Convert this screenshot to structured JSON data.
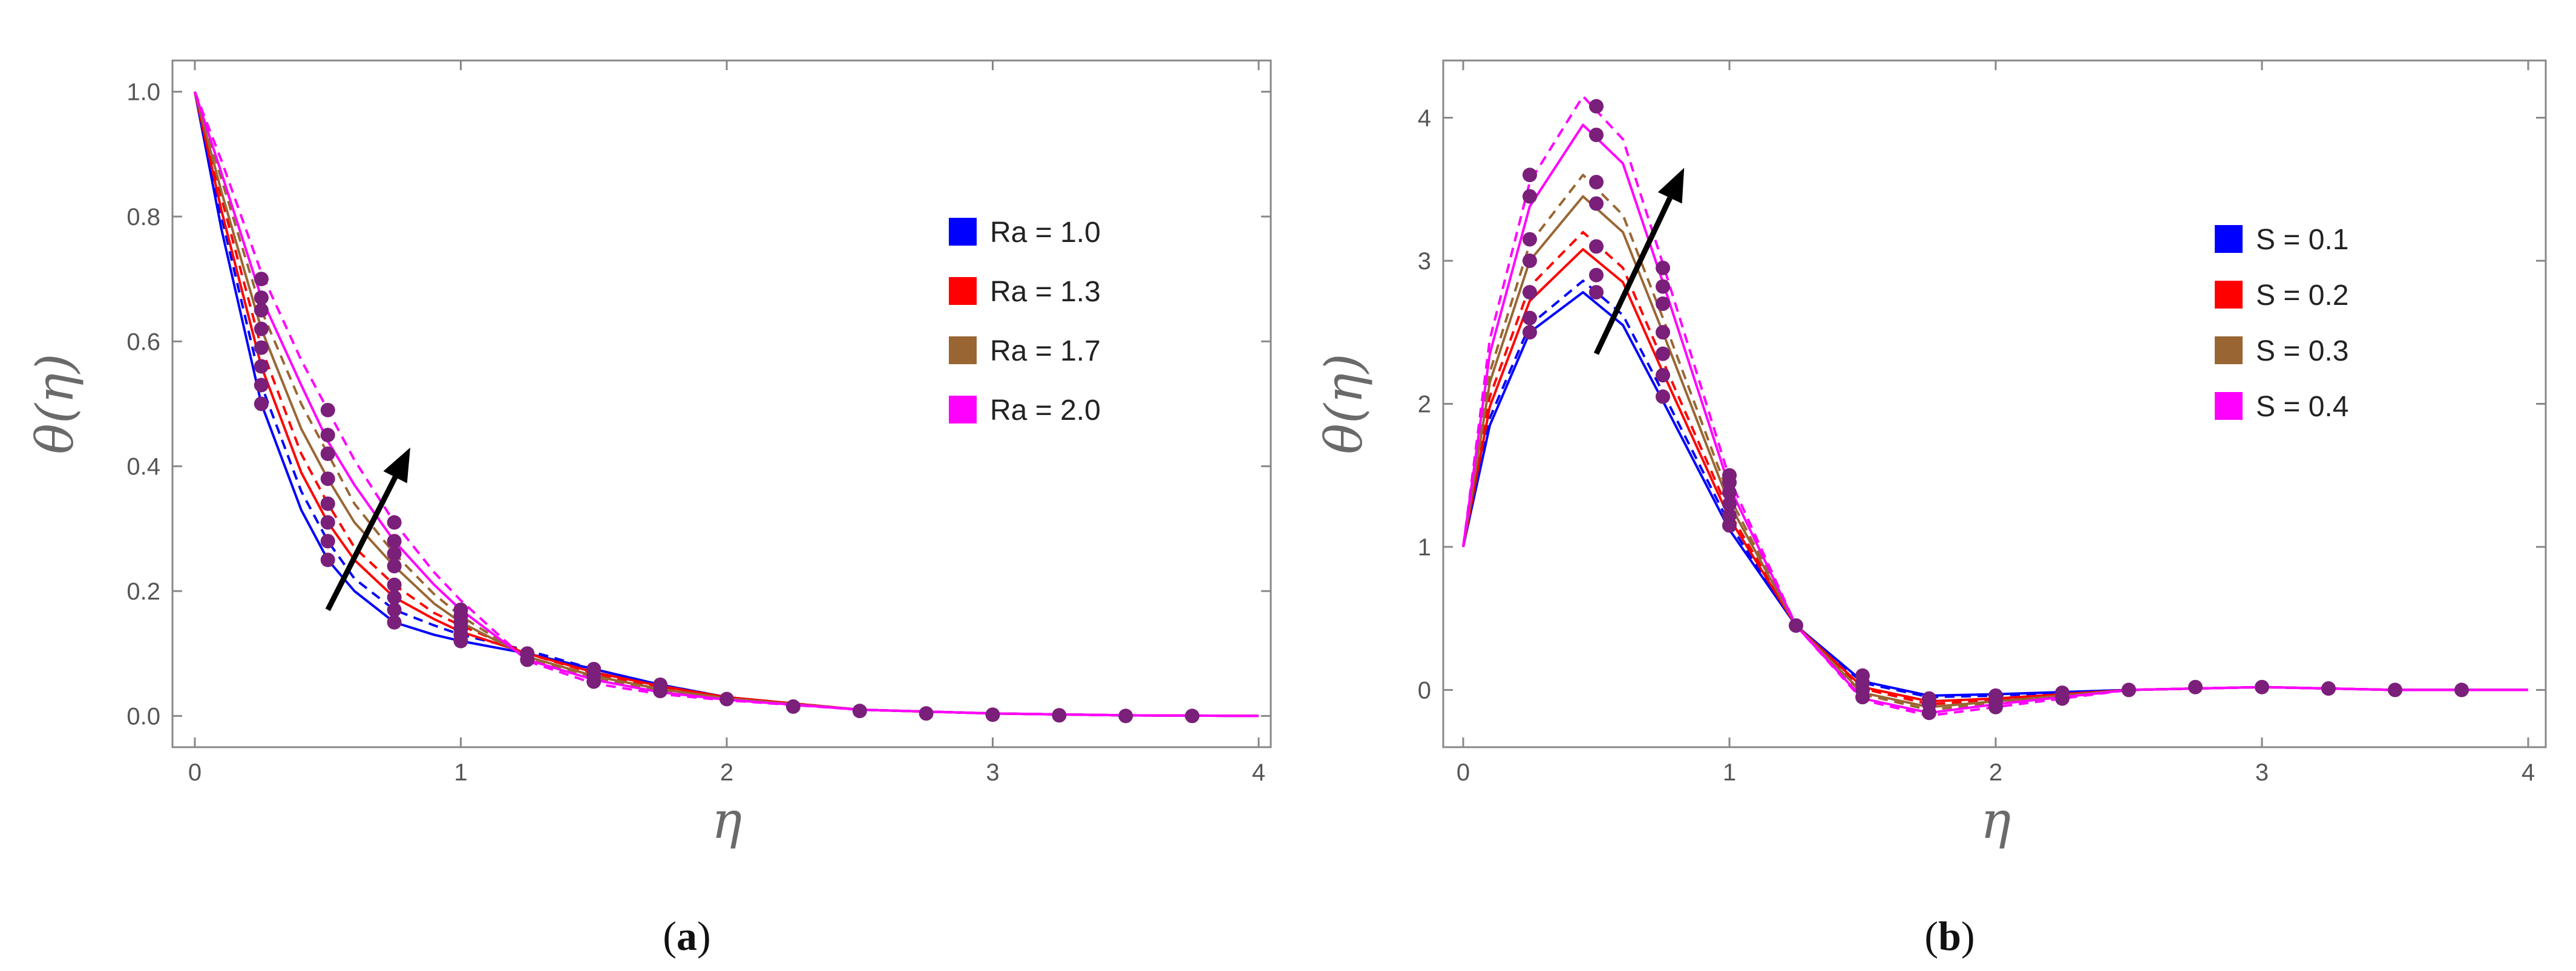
{
  "chart_data": [
    {
      "id": "a",
      "type": "line",
      "caption_letter": "a",
      "xlabel": "η",
      "ylabel": "θ(η)",
      "xlim": [
        0,
        4
      ],
      "ylim": [
        -0.05,
        1.05
      ],
      "xticks": [
        0,
        1,
        2,
        3,
        4
      ],
      "yticks": [
        0.0,
        0.2,
        0.4,
        0.6,
        0.8,
        1.0
      ],
      "ytick_labels": [
        "0.0",
        "0.2",
        "0.4",
        "0.6",
        "0.8",
        "1.0"
      ],
      "legend_position": "top-right",
      "arrow": {
        "from": [
          0.5,
          0.17
        ],
        "to": [
          0.81,
          0.43
        ]
      },
      "colors": {
        "blue": "#0000ff",
        "red": "#ff0000",
        "brown": "#996633",
        "magenta": "#ff00ff",
        "marker": "#7a1f7a",
        "arrow": "#000000"
      },
      "series": [
        {
          "name": "Ra = 1.0",
          "color": "#0000ff",
          "x": [
            0,
            0.1,
            0.25,
            0.4,
            0.5,
            0.6,
            0.75,
            0.9,
            1.0,
            1.25,
            1.5,
            1.75,
            2.0,
            2.5,
            3.0,
            3.5,
            4.0
          ],
          "solid": [
            1.0,
            0.78,
            0.5,
            0.33,
            0.25,
            0.2,
            0.15,
            0.13,
            0.12,
            0.1,
            0.075,
            0.05,
            0.03,
            0.01,
            0.004,
            0.001,
            0.0
          ],
          "dashed": [
            1.0,
            0.8,
            0.53,
            0.36,
            0.28,
            0.22,
            0.17,
            0.145,
            0.13,
            0.105,
            0.075,
            0.05,
            0.03,
            0.01,
            0.004,
            0.001,
            0.0
          ]
        },
        {
          "name": "Ra = 1.3",
          "color": "#ff0000",
          "x": [
            0,
            0.1,
            0.25,
            0.4,
            0.5,
            0.6,
            0.75,
            0.9,
            1.0,
            1.25,
            1.5,
            1.75,
            2.0,
            2.5,
            3.0,
            3.5,
            4.0
          ],
          "solid": [
            1.0,
            0.81,
            0.56,
            0.39,
            0.31,
            0.25,
            0.19,
            0.155,
            0.135,
            0.1,
            0.07,
            0.048,
            0.03,
            0.01,
            0.004,
            0.001,
            0.0
          ],
          "dashed": [
            1.0,
            0.83,
            0.59,
            0.42,
            0.34,
            0.27,
            0.21,
            0.165,
            0.145,
            0.1,
            0.068,
            0.046,
            0.03,
            0.01,
            0.004,
            0.001,
            0.0
          ]
        },
        {
          "name": "Ra = 1.7",
          "color": "#996633",
          "x": [
            0,
            0.1,
            0.25,
            0.4,
            0.5,
            0.6,
            0.75,
            0.9,
            1.0,
            1.25,
            1.5,
            1.75,
            2.0,
            2.5,
            3.0,
            3.5,
            4.0
          ],
          "solid": [
            1.0,
            0.84,
            0.62,
            0.46,
            0.38,
            0.31,
            0.24,
            0.18,
            0.15,
            0.095,
            0.064,
            0.043,
            0.028,
            0.01,
            0.004,
            0.001,
            0.0
          ],
          "dashed": [
            1.0,
            0.86,
            0.65,
            0.5,
            0.42,
            0.34,
            0.26,
            0.195,
            0.16,
            0.093,
            0.06,
            0.04,
            0.027,
            0.01,
            0.004,
            0.001,
            0.0
          ]
        },
        {
          "name": "Ra = 2.0",
          "color": "#ff00ff",
          "x": [
            0,
            0.1,
            0.25,
            0.4,
            0.5,
            0.6,
            0.75,
            0.9,
            1.0,
            1.25,
            1.5,
            1.75,
            2.0,
            2.5,
            3.0,
            3.5,
            4.0
          ],
          "solid": [
            1.0,
            0.87,
            0.67,
            0.53,
            0.44,
            0.37,
            0.28,
            0.21,
            0.17,
            0.09,
            0.058,
            0.038,
            0.026,
            0.01,
            0.004,
            0.001,
            0.0
          ],
          "dashed": [
            1.0,
            0.89,
            0.71,
            0.57,
            0.49,
            0.41,
            0.31,
            0.23,
            0.185,
            0.088,
            0.052,
            0.035,
            0.025,
            0.01,
            0.004,
            0.001,
            0.0
          ]
        }
      ],
      "markers": [
        [
          0.25,
          0.5
        ],
        [
          0.25,
          0.53
        ],
        [
          0.25,
          0.56
        ],
        [
          0.25,
          0.59
        ],
        [
          0.25,
          0.62
        ],
        [
          0.25,
          0.65
        ],
        [
          0.25,
          0.67
        ],
        [
          0.25,
          0.7
        ],
        [
          0.5,
          0.25
        ],
        [
          0.5,
          0.28
        ],
        [
          0.5,
          0.31
        ],
        [
          0.5,
          0.34
        ],
        [
          0.5,
          0.38
        ],
        [
          0.5,
          0.42
        ],
        [
          0.5,
          0.45
        ],
        [
          0.5,
          0.49
        ],
        [
          0.75,
          0.15
        ],
        [
          0.75,
          0.17
        ],
        [
          0.75,
          0.19
        ],
        [
          0.75,
          0.21
        ],
        [
          0.75,
          0.24
        ],
        [
          0.75,
          0.26
        ],
        [
          0.75,
          0.28
        ],
        [
          0.75,
          0.31
        ],
        [
          1.0,
          0.12
        ],
        [
          1.0,
          0.13
        ],
        [
          1.0,
          0.14
        ],
        [
          1.0,
          0.15
        ],
        [
          1.0,
          0.16
        ],
        [
          1.0,
          0.17
        ],
        [
          1.25,
          0.09
        ],
        [
          1.25,
          0.1
        ],
        [
          1.5,
          0.055
        ],
        [
          1.5,
          0.065
        ],
        [
          1.5,
          0.075
        ],
        [
          1.75,
          0.04
        ],
        [
          1.75,
          0.05
        ],
        [
          2.0,
          0.027
        ],
        [
          2.25,
          0.015
        ],
        [
          2.5,
          0.008
        ],
        [
          2.75,
          0.004
        ],
        [
          3.0,
          0.002
        ],
        [
          3.25,
          0.001
        ],
        [
          3.5,
          0.0
        ],
        [
          3.75,
          0.0
        ]
      ]
    },
    {
      "id": "b",
      "type": "line",
      "caption_letter": "b",
      "xlabel": "η",
      "ylabel": "θ(η)",
      "xlim": [
        0,
        4
      ],
      "ylim": [
        -0.4,
        4.4
      ],
      "xticks": [
        0,
        1,
        2,
        3,
        4
      ],
      "yticks": [
        0,
        1,
        2,
        3,
        4
      ],
      "ytick_labels": [
        "0",
        "1",
        "2",
        "3",
        "4"
      ],
      "legend_position": "top-right",
      "arrow": {
        "from": [
          0.5,
          2.35
        ],
        "to": [
          0.83,
          3.65
        ]
      },
      "colors": {
        "blue": "#0000ff",
        "red": "#ff0000",
        "brown": "#996633",
        "magenta": "#ff00ff",
        "marker": "#7a1f7a",
        "arrow": "#000000"
      },
      "series": [
        {
          "name": "S = 0.1",
          "color": "#0000ff",
          "x": [
            0,
            0.1,
            0.25,
            0.45,
            0.6,
            0.75,
            1.0,
            1.25,
            1.5,
            1.75,
            2.0,
            2.5,
            3.0,
            3.5,
            4.0
          ],
          "solid": [
            1.0,
            1.85,
            2.5,
            2.78,
            2.55,
            2.02,
            1.12,
            0.45,
            0.06,
            -0.04,
            -0.03,
            0.0,
            0.02,
            0.0,
            0.0
          ],
          "dashed": [
            1.0,
            1.9,
            2.55,
            2.86,
            2.62,
            2.08,
            1.16,
            0.45,
            0.05,
            -0.05,
            -0.04,
            0.0,
            0.02,
            0.0,
            0.0
          ]
        },
        {
          "name": "S = 0.2",
          "color": "#ff0000",
          "x": [
            0,
            0.1,
            0.25,
            0.45,
            0.6,
            0.75,
            1.0,
            1.25,
            1.5,
            1.75,
            2.0,
            2.5,
            3.0,
            3.5,
            4.0
          ],
          "solid": [
            1.0,
            1.98,
            2.72,
            3.08,
            2.85,
            2.22,
            1.2,
            0.45,
            0.02,
            -0.08,
            -0.06,
            0.0,
            0.02,
            0.0,
            0.0
          ],
          "dashed": [
            1.0,
            2.05,
            2.82,
            3.2,
            2.95,
            2.3,
            1.24,
            0.45,
            0.01,
            -0.1,
            -0.07,
            0.0,
            0.02,
            0.0,
            0.0
          ]
        },
        {
          "name": "S = 0.3",
          "color": "#996633",
          "x": [
            0,
            0.1,
            0.25,
            0.45,
            0.6,
            0.75,
            1.0,
            1.25,
            1.5,
            1.75,
            2.0,
            2.5,
            3.0,
            3.5,
            4.0
          ],
          "solid": [
            1.0,
            2.15,
            3.0,
            3.45,
            3.2,
            2.5,
            1.3,
            0.45,
            -0.02,
            -0.12,
            -0.08,
            0.0,
            0.02,
            0.0,
            0.0
          ],
          "dashed": [
            1.0,
            2.22,
            3.12,
            3.6,
            3.32,
            2.6,
            1.35,
            0.45,
            -0.03,
            -0.14,
            -0.09,
            0.0,
            0.02,
            0.0,
            0.0
          ]
        },
        {
          "name": "S = 0.4",
          "color": "#ff00ff",
          "x": [
            0,
            0.1,
            0.25,
            0.45,
            0.6,
            0.75,
            1.0,
            1.25,
            1.5,
            1.75,
            2.0,
            2.5,
            3.0,
            3.5,
            4.0
          ],
          "solid": [
            1.0,
            2.35,
            3.38,
            3.95,
            3.68,
            2.85,
            1.42,
            0.45,
            -0.06,
            -0.16,
            -0.1,
            0.0,
            0.02,
            0.0,
            0.0
          ],
          "dashed": [
            1.0,
            2.45,
            3.55,
            4.15,
            3.85,
            2.98,
            1.48,
            0.45,
            -0.07,
            -0.18,
            -0.12,
            0.0,
            0.02,
            0.0,
            0.0
          ]
        }
      ],
      "markers": [
        [
          0.25,
          2.5
        ],
        [
          0.25,
          2.6
        ],
        [
          0.25,
          2.78
        ],
        [
          0.25,
          3.0
        ],
        [
          0.25,
          3.15
        ],
        [
          0.25,
          3.45
        ],
        [
          0.25,
          3.6
        ],
        [
          0.5,
          2.78
        ],
        [
          0.5,
          2.9
        ],
        [
          0.5,
          3.1
        ],
        [
          0.5,
          3.4
        ],
        [
          0.5,
          3.55
        ],
        [
          0.5,
          3.88
        ],
        [
          0.5,
          4.08
        ],
        [
          0.75,
          2.05
        ],
        [
          0.75,
          2.2
        ],
        [
          0.75,
          2.35
        ],
        [
          0.75,
          2.5
        ],
        [
          0.75,
          2.7
        ],
        [
          0.75,
          2.82
        ],
        [
          0.75,
          2.95
        ],
        [
          1.0,
          1.15
        ],
        [
          1.0,
          1.22
        ],
        [
          1.0,
          1.3
        ],
        [
          1.0,
          1.38
        ],
        [
          1.0,
          1.45
        ],
        [
          1.0,
          1.5
        ],
        [
          1.25,
          0.45
        ],
        [
          1.5,
          -0.05
        ],
        [
          1.5,
          0.0
        ],
        [
          1.5,
          0.05
        ],
        [
          1.5,
          0.1
        ],
        [
          1.75,
          -0.16
        ],
        [
          1.75,
          -0.1
        ],
        [
          1.75,
          -0.06
        ],
        [
          2.0,
          -0.12
        ],
        [
          2.0,
          -0.08
        ],
        [
          2.0,
          -0.04
        ],
        [
          2.25,
          -0.06
        ],
        [
          2.25,
          -0.02
        ],
        [
          2.5,
          0.0
        ],
        [
          2.75,
          0.02
        ],
        [
          3.0,
          0.02
        ],
        [
          3.25,
          0.01
        ],
        [
          3.5,
          0.0
        ],
        [
          3.75,
          0.0
        ]
      ]
    }
  ]
}
